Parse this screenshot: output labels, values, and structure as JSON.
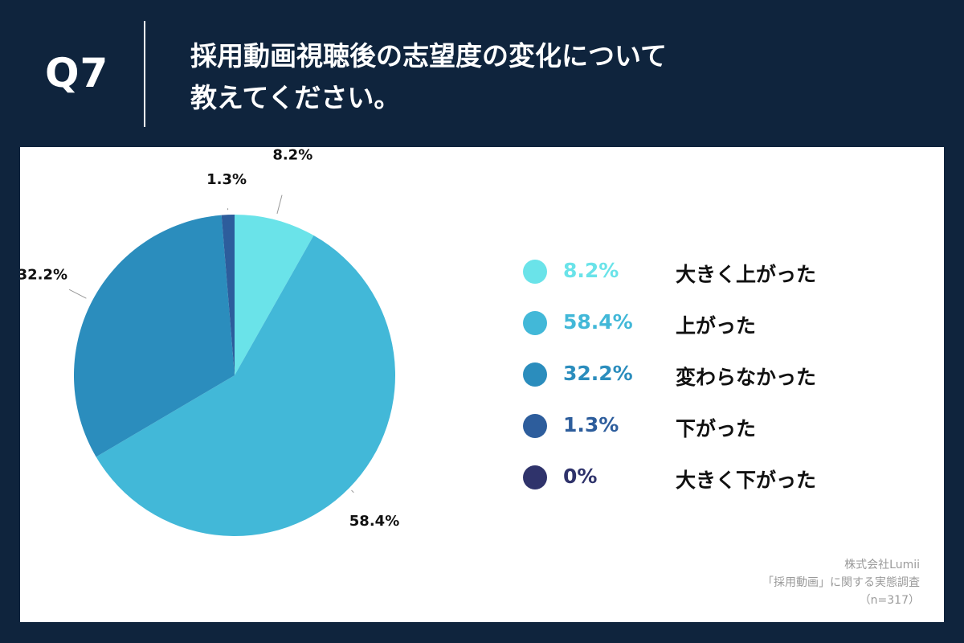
{
  "header": {
    "question_number": "Q7",
    "title_line1": "採用動画視聴後の志望度の変化について",
    "title_line2": "教えてください。"
  },
  "chart_data": {
    "type": "pie",
    "start_angle": "top, clockwise",
    "slices": [
      {
        "label": "大きく上がった",
        "value": 8.2,
        "display": "8.2%",
        "color": "#6ae3e9"
      },
      {
        "label": "上がった",
        "value": 58.4,
        "display": "58.4%",
        "color": "#42b8d8"
      },
      {
        "label": "変わらなかった",
        "value": 32.2,
        "display": "32.2%",
        "color": "#2b8dbd"
      },
      {
        "label": "下がった",
        "value": 1.3,
        "display": "1.3%",
        "color": "#2d5d9c"
      },
      {
        "label": "大きく下がった",
        "value": 0,
        "display": "0%",
        "color": "#2f336b"
      }
    ]
  },
  "source": {
    "line1": "株式会社Lumii",
    "line2": "「採用動画」に関する実態調査",
    "line3": "（n=317）"
  }
}
